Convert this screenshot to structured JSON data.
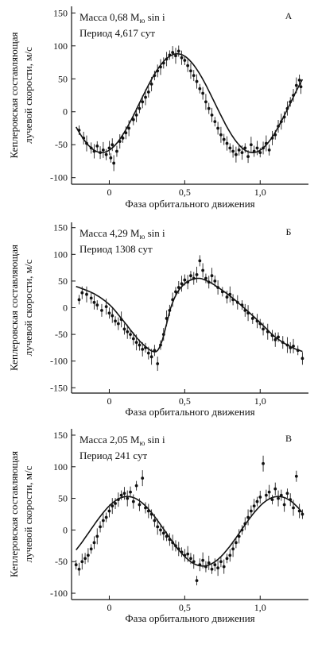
{
  "chart_data": [
    {
      "type": "scatter",
      "panel_label": "A",
      "mass_text": "Масса 0,68 M",
      "mass_sub": "ю",
      "mass_suffix": " sin i",
      "period_text": "Период 4,617 сут",
      "xlabel": "Фаза орбитального движения",
      "ylabel_line1": "Кеплеровская составляющая",
      "ylabel_line2": "лучевой скорости, м/с",
      "xlim": [
        -0.25,
        1.32
      ],
      "ylim": [
        -110,
        160
      ],
      "xticks": [
        0,
        0.5,
        1.0
      ],
      "xtick_labels": [
        "0",
        "0,5",
        "1,0"
      ],
      "yticks": [
        -100,
        -50,
        0,
        50,
        100,
        150
      ],
      "ytick_labels": [
        "-100",
        "-50",
        "0",
        "50",
        "100",
        "150"
      ],
      "fit": {
        "amplitude": 75,
        "offset": 13,
        "phase_of_max": 0.45
      },
      "points": [
        [
          -0.2,
          -28
        ],
        [
          -0.17,
          -40
        ],
        [
          -0.15,
          -48
        ],
        [
          -0.12,
          -55
        ],
        [
          -0.1,
          -60
        ],
        [
          -0.08,
          -52
        ],
        [
          -0.06,
          -62
        ],
        [
          -0.04,
          -58
        ],
        [
          -0.02,
          -65
        ],
        [
          0.0,
          -55
        ],
        [
          0.01,
          -70
        ],
        [
          0.02,
          -50
        ],
        [
          0.03,
          -78
        ],
        [
          0.05,
          -60
        ],
        [
          0.07,
          -45
        ],
        [
          0.09,
          -40
        ],
        [
          0.11,
          -32
        ],
        [
          0.13,
          -25
        ],
        [
          0.16,
          -12
        ],
        [
          0.18,
          -5
        ],
        [
          0.2,
          5
        ],
        [
          0.22,
          15
        ],
        [
          0.24,
          22
        ],
        [
          0.26,
          30
        ],
        [
          0.28,
          42
        ],
        [
          0.3,
          55
        ],
        [
          0.32,
          62
        ],
        [
          0.34,
          68
        ],
        [
          0.36,
          74
        ],
        [
          0.38,
          80
        ],
        [
          0.4,
          86
        ],
        [
          0.42,
          90
        ],
        [
          0.44,
          85
        ],
        [
          0.46,
          92
        ],
        [
          0.48,
          82
        ],
        [
          0.5,
          78
        ],
        [
          0.52,
          70
        ],
        [
          0.54,
          62
        ],
        [
          0.56,
          55
        ],
        [
          0.58,
          46
        ],
        [
          0.6,
          35
        ],
        [
          0.62,
          28
        ],
        [
          0.64,
          15
        ],
        [
          0.66,
          5
        ],
        [
          0.68,
          -5
        ],
        [
          0.7,
          -15
        ],
        [
          0.72,
          -25
        ],
        [
          0.74,
          -35
        ],
        [
          0.76,
          -42
        ],
        [
          0.78,
          -48
        ],
        [
          0.8,
          -55
        ],
        [
          0.82,
          -60
        ],
        [
          0.84,
          -65
        ],
        [
          0.86,
          -58
        ],
        [
          0.88,
          -62
        ],
        [
          0.9,
          -55
        ],
        [
          0.92,
          -68
        ],
        [
          0.94,
          -50
        ],
        [
          0.96,
          -60
        ],
        [
          0.98,
          -55
        ],
        [
          1.0,
          -62
        ],
        [
          1.02,
          -55
        ],
        [
          1.04,
          -48
        ],
        [
          1.06,
          -58
        ],
        [
          1.08,
          -40
        ],
        [
          1.1,
          -35
        ],
        [
          1.12,
          -22
        ],
        [
          1.14,
          -15
        ],
        [
          1.16,
          -8
        ],
        [
          1.18,
          5
        ],
        [
          1.2,
          15
        ],
        [
          1.22,
          25
        ],
        [
          1.24,
          40
        ],
        [
          1.26,
          48
        ],
        [
          1.27,
          38
        ]
      ]
    },
    {
      "type": "scatter",
      "panel_label": "Б",
      "mass_text": "Масса 4,29 M",
      "mass_sub": "ю",
      "mass_suffix": " sin i",
      "period_text": "Период 1308 сут",
      "xlabel": "Фаза орбитального движения",
      "ylabel_line1": "Кеплеровская составляющая",
      "ylabel_line2": "лучевой скорости, м/с",
      "xlim": [
        -0.25,
        1.32
      ],
      "ylim": [
        -160,
        160
      ],
      "xticks": [
        0,
        0.5,
        1.0
      ],
      "xtick_labels": [
        "0",
        "0,5",
        "1,0"
      ],
      "yticks": [
        -150,
        -100,
        -50,
        0,
        50,
        100,
        150
      ],
      "ytick_labels": [
        "-150",
        "-100",
        "-50",
        "0",
        "50",
        "100",
        "150"
      ],
      "fit_curve": [
        [
          -0.22,
          40
        ],
        [
          -0.1,
          26
        ],
        [
          0.0,
          6
        ],
        [
          0.08,
          -20
        ],
        [
          0.15,
          -45
        ],
        [
          0.2,
          -62
        ],
        [
          0.25,
          -75
        ],
        [
          0.29,
          -82
        ],
        [
          0.32,
          -80
        ],
        [
          0.35,
          -62
        ],
        [
          0.38,
          -30
        ],
        [
          0.41,
          2
        ],
        [
          0.45,
          28
        ],
        [
          0.5,
          45
        ],
        [
          0.55,
          53
        ],
        [
          0.6,
          55
        ],
        [
          0.65,
          50
        ],
        [
          0.7,
          42
        ],
        [
          0.8,
          22
        ],
        [
          0.9,
          -2
        ],
        [
          1.0,
          -28
        ],
        [
          1.1,
          -55
        ],
        [
          1.2,
          -73
        ],
        [
          1.28,
          -82
        ]
      ],
      "points": [
        [
          -0.2,
          15
        ],
        [
          -0.18,
          28
        ],
        [
          -0.15,
          25
        ],
        [
          -0.12,
          18
        ],
        [
          -0.1,
          10
        ],
        [
          -0.08,
          5
        ],
        [
          -0.05,
          -5
        ],
        [
          -0.02,
          2
        ],
        [
          0.0,
          -10
        ],
        [
          0.02,
          -15
        ],
        [
          0.04,
          -25
        ],
        [
          0.06,
          -30
        ],
        [
          0.08,
          -22
        ],
        [
          0.1,
          -40
        ],
        [
          0.12,
          -45
        ],
        [
          0.14,
          -50
        ],
        [
          0.16,
          -58
        ],
        [
          0.18,
          -65
        ],
        [
          0.2,
          -70
        ],
        [
          0.22,
          -78
        ],
        [
          0.24,
          -75
        ],
        [
          0.26,
          -85
        ],
        [
          0.28,
          -92
        ],
        [
          0.3,
          -80
        ],
        [
          0.32,
          -105
        ],
        [
          0.34,
          -70
        ],
        [
          0.36,
          -50
        ],
        [
          0.38,
          -20
        ],
        [
          0.4,
          -5
        ],
        [
          0.42,
          15
        ],
        [
          0.44,
          30
        ],
        [
          0.46,
          38
        ],
        [
          0.48,
          45
        ],
        [
          0.5,
          52
        ],
        [
          0.52,
          48
        ],
        [
          0.54,
          60
        ],
        [
          0.56,
          55
        ],
        [
          0.58,
          62
        ],
        [
          0.6,
          88
        ],
        [
          0.62,
          70
        ],
        [
          0.64,
          55
        ],
        [
          0.66,
          48
        ],
        [
          0.68,
          60
        ],
        [
          0.7,
          50
        ],
        [
          0.72,
          38
        ],
        [
          0.75,
          30
        ],
        [
          0.78,
          20
        ],
        [
          0.8,
          25
        ],
        [
          0.82,
          15
        ],
        [
          0.85,
          10
        ],
        [
          0.88,
          5
        ],
        [
          0.9,
          -5
        ],
        [
          0.92,
          -10
        ],
        [
          0.95,
          -20
        ],
        [
          0.98,
          -25
        ],
        [
          1.0,
          -30
        ],
        [
          1.02,
          -40
        ],
        [
          1.05,
          -45
        ],
        [
          1.08,
          -52
        ],
        [
          1.1,
          -60
        ],
        [
          1.12,
          -55
        ],
        [
          1.15,
          -65
        ],
        [
          1.18,
          -70
        ],
        [
          1.2,
          -75
        ],
        [
          1.22,
          -72
        ],
        [
          1.25,
          -80
        ],
        [
          1.28,
          -95
        ]
      ]
    },
    {
      "type": "scatter",
      "panel_label": "В",
      "mass_text": "Масса 2,05 M",
      "mass_sub": "ю",
      "mass_suffix": " sin i",
      "period_text": "Период 241 сут",
      "xlabel": "Фаза орбитального движения",
      "ylabel_line1": "Кеплеровская составляющая",
      "ylabel_line2": "лучевой скорости, м/с",
      "xlim": [
        -0.25,
        1.32
      ],
      "ylim": [
        -110,
        160
      ],
      "xticks": [
        0,
        0.5,
        1.0
      ],
      "xtick_labels": [
        "0",
        "0,5",
        "1,0"
      ],
      "yticks": [
        -100,
        -50,
        0,
        50,
        100,
        150
      ],
      "ytick_labels": [
        "-100",
        "-50",
        "0",
        "50",
        "100",
        "150"
      ],
      "fit": {
        "amplitude": 55,
        "offset": -2,
        "phase_of_max": 0.12
      },
      "points": [
        [
          -0.22,
          -55
        ],
        [
          -0.2,
          -62
        ],
        [
          -0.18,
          -50
        ],
        [
          -0.16,
          -45
        ],
        [
          -0.14,
          -40
        ],
        [
          -0.12,
          -30
        ],
        [
          -0.1,
          -20
        ],
        [
          -0.08,
          -10
        ],
        [
          -0.06,
          5
        ],
        [
          -0.04,
          15
        ],
        [
          -0.02,
          20
        ],
        [
          0.0,
          30
        ],
        [
          0.02,
          38
        ],
        [
          0.04,
          42
        ],
        [
          0.06,
          48
        ],
        [
          0.08,
          55
        ],
        [
          0.1,
          58
        ],
        [
          0.12,
          50
        ],
        [
          0.14,
          60
        ],
        [
          0.16,
          45
        ],
        [
          0.18,
          70
        ],
        [
          0.2,
          40
        ],
        [
          0.22,
          82
        ],
        [
          0.24,
          35
        ],
        [
          0.26,
          30
        ],
        [
          0.28,
          25
        ],
        [
          0.3,
          15
        ],
        [
          0.32,
          5
        ],
        [
          0.34,
          0
        ],
        [
          0.36,
          -5
        ],
        [
          0.38,
          -10
        ],
        [
          0.4,
          -15
        ],
        [
          0.42,
          -20
        ],
        [
          0.44,
          -25
        ],
        [
          0.46,
          -30
        ],
        [
          0.48,
          -35
        ],
        [
          0.5,
          -40
        ],
        [
          0.52,
          -38
        ],
        [
          0.54,
          -45
        ],
        [
          0.56,
          -50
        ],
        [
          0.58,
          -80
        ],
        [
          0.6,
          -55
        ],
        [
          0.62,
          -48
        ],
        [
          0.64,
          -58
        ],
        [
          0.66,
          -52
        ],
        [
          0.68,
          -62
        ],
        [
          0.7,
          -55
        ],
        [
          0.72,
          -60
        ],
        [
          0.74,
          -50
        ],
        [
          0.76,
          -58
        ],
        [
          0.78,
          -45
        ],
        [
          0.8,
          -40
        ],
        [
          0.82,
          -30
        ],
        [
          0.84,
          -20
        ],
        [
          0.86,
          -10
        ],
        [
          0.88,
          0
        ],
        [
          0.9,
          10
        ],
        [
          0.92,
          20
        ],
        [
          0.94,
          30
        ],
        [
          0.96,
          38
        ],
        [
          0.98,
          45
        ],
        [
          1.0,
          52
        ],
        [
          1.02,
          105
        ],
        [
          1.04,
          55
        ],
        [
          1.06,
          60
        ],
        [
          1.08,
          48
        ],
        [
          1.1,
          65
        ],
        [
          1.12,
          50
        ],
        [
          1.14,
          55
        ],
        [
          1.16,
          40
        ],
        [
          1.18,
          58
        ],
        [
          1.2,
          48
        ],
        [
          1.22,
          35
        ],
        [
          1.24,
          85
        ],
        [
          1.26,
          30
        ],
        [
          1.28,
          25
        ]
      ]
    }
  ]
}
